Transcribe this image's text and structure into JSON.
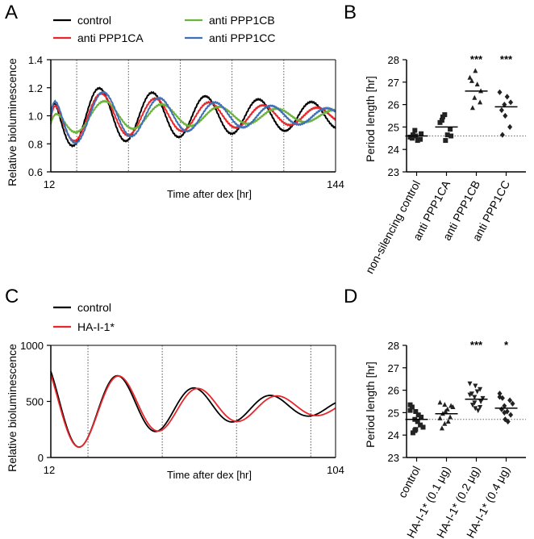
{
  "chart_data": [
    {
      "panel": "A",
      "type": "line",
      "ylabel": "Relative bioluminescence",
      "xlabel": "Time after dex [hr]",
      "xlim": [
        12,
        144
      ],
      "ylim": [
        0.6,
        1.4
      ],
      "xtick_labels": [
        "12",
        "144"
      ],
      "ytick_labels": [
        "0.6",
        "0.8",
        "1.0",
        "1.2",
        "1.4"
      ],
      "vlines": [
        24,
        48,
        72,
        96,
        120
      ],
      "series": [
        {
          "name": "control",
          "color": "#000000",
          "mean": 1.0,
          "amp": 0.23,
          "period": 24.6,
          "peak": 34.5,
          "decay": 0.007,
          "warm": 1.0
        },
        {
          "name": "anti PPP1CA",
          "color": "#e8262b",
          "mean": 1.0,
          "amp": 0.2,
          "period": 25.0,
          "peak": 35.5,
          "decay": 0.01,
          "warm": 1.5
        },
        {
          "name": "anti PPP1CB",
          "color": "#6cb33e",
          "mean": 1.0,
          "amp": 0.13,
          "period": 26.6,
          "peak": 37.0,
          "decay": 0.009,
          "warm": 2.5
        },
        {
          "name": "anti PPP1CC",
          "color": "#3f6fb6",
          "mean": 1.0,
          "amp": 0.22,
          "period": 25.9,
          "peak": 36.5,
          "decay": 0.011,
          "warm": 1.2
        }
      ]
    },
    {
      "panel": "B",
      "type": "scatter",
      "ylabel": "Period length [hr]",
      "ylim": [
        23,
        28
      ],
      "ytick_labels": [
        "23",
        "24",
        "25",
        "26",
        "27",
        "28"
      ],
      "reference_line": 24.6,
      "categories": [
        "non-silencing control",
        "anti PPP1CA",
        "anti PPP1CB",
        "anti PPP1CC"
      ],
      "markers": [
        "square",
        "square",
        "triangle",
        "diamond"
      ],
      "means": [
        24.6,
        25.0,
        26.6,
        25.9
      ],
      "significance": [
        "",
        "",
        "***",
        "***"
      ],
      "points": [
        [
          24.55,
          24.85,
          24.6,
          24.45,
          24.7,
          24.5,
          24.65,
          24.4
        ],
        [
          25.2,
          25.55,
          24.4,
          24.9,
          24.6,
          25.3,
          25.45,
          24.65
        ],
        [
          27.2,
          26.3,
          27.5,
          26.1,
          26.6,
          27.05,
          25.85,
          26.9
        ],
        [
          26.55,
          26.0,
          25.5,
          25.0,
          26.1,
          25.75,
          24.65,
          26.35
        ]
      ]
    },
    {
      "panel": "C",
      "type": "line",
      "ylabel": "Relative bioluminescence",
      "xlabel": "Time after dex [hr]",
      "xlim": [
        12,
        104
      ],
      "ylim": [
        0,
        1000
      ],
      "xtick_labels": [
        "12",
        "104"
      ],
      "ytick_labels": [
        "0",
        "500",
        "1000"
      ],
      "vlines": [
        24,
        48,
        72,
        96
      ],
      "series": [
        {
          "name": "control",
          "color": "#000000",
          "mean": 450,
          "amp": 430,
          "period": 24.7,
          "peak": 33.8,
          "decay": 0.02,
          "floor": 60
        },
        {
          "name": "HA-I-1*",
          "color": "#e8262b",
          "mean": 450,
          "amp": 430,
          "period": 25.6,
          "peak": 34.2,
          "decay": 0.02,
          "floor": 60
        }
      ]
    },
    {
      "panel": "D",
      "type": "scatter",
      "ylabel": "Period length [hr]",
      "ylim": [
        23,
        28
      ],
      "ytick_labels": [
        "23",
        "24",
        "25",
        "26",
        "27",
        "28"
      ],
      "reference_line": 24.7,
      "categories": [
        "control",
        "HA-I-1* (0.1 μg)",
        "HA-I-1* (0.2 μg)",
        "HA-I-1* (0.4 μg)"
      ],
      "markers": [
        "square",
        "triangle",
        "triangle-down",
        "diamond"
      ],
      "means": [
        24.7,
        24.95,
        25.6,
        25.2
      ],
      "significance": [
        "",
        "",
        "***",
        "*"
      ],
      "points": [
        [
          25.35,
          24.2,
          25.05,
          24.45,
          24.8,
          25.25,
          24.1,
          24.6,
          24.9,
          24.35,
          25.1,
          24.7,
          24.25
        ],
        [
          25.45,
          24.5,
          25.05,
          24.8,
          25.3,
          24.3,
          24.95,
          25.15,
          24.6,
          25.25,
          24.75,
          25.35
        ],
        [
          26.3,
          25.7,
          25.2,
          26.05,
          25.5,
          25.85,
          25.35,
          25.95,
          25.1,
          25.65,
          25.8,
          25.45,
          26.2,
          25.25
        ],
        [
          25.85,
          25.3,
          24.7,
          25.55,
          24.9,
          25.15,
          25.65,
          25.05,
          24.6,
          25.4,
          25.7,
          25.0
        ]
      ]
    }
  ],
  "panel_labels": [
    "A",
    "B",
    "C",
    "D"
  ]
}
